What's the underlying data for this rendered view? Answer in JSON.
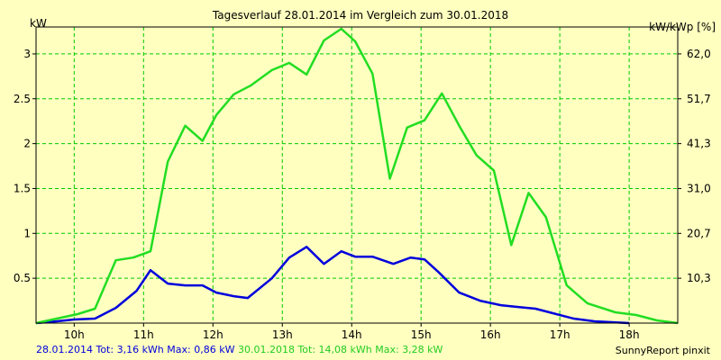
{
  "chart_data": {
    "type": "line",
    "title": "Tagesverlauf 28.01.2014 im Vergleich zum 30.01.2018",
    "ylabel": "kW",
    "ylabel_right": "kW/kWp [%]",
    "xlim": [
      9.45,
      18.7
    ],
    "ylim": [
      0,
      3.3
    ],
    "x_ticks": [
      10,
      11,
      12,
      13,
      14,
      15,
      16,
      17,
      18
    ],
    "x_tick_labels": [
      "10h",
      "11h",
      "12h",
      "13h",
      "14h",
      "15h",
      "16h",
      "17h",
      "18h"
    ],
    "y_ticks": [
      0.5,
      1,
      1.5,
      2,
      2.5,
      3
    ],
    "y_tick_labels": [
      "0.5",
      "1",
      "1.5",
      "2",
      "2.5",
      "3"
    ],
    "y2_ticks": [
      0.5,
      1,
      1.5,
      2,
      2.5,
      3
    ],
    "y2_tick_labels": [
      "10,3",
      "20,7",
      "31,0",
      "41,3",
      "51,7",
      "62,0"
    ],
    "grid": true,
    "colors": {
      "background": "#ffffc0",
      "grid": "#00cc00",
      "axis": "#000000",
      "series_2014": "#0000dd",
      "series_2018": "#22dd22"
    },
    "series": [
      {
        "name": "28.01.2014",
        "color": "#0000dd",
        "x": [
          9.45,
          9.75,
          10.0,
          10.3,
          10.6,
          10.9,
          11.1,
          11.35,
          11.6,
          11.85,
          12.05,
          12.3,
          12.5,
          12.85,
          13.1,
          13.35,
          13.6,
          13.85,
          14.05,
          14.3,
          14.6,
          14.85,
          15.05,
          15.25,
          15.55,
          15.85,
          16.15,
          16.4,
          16.65,
          16.9,
          17.2,
          17.5,
          18.0
        ],
        "y": [
          0.0,
          0.02,
          0.04,
          0.05,
          0.17,
          0.36,
          0.59,
          0.44,
          0.42,
          0.42,
          0.34,
          0.3,
          0.28,
          0.5,
          0.73,
          0.85,
          0.66,
          0.8,
          0.74,
          0.74,
          0.66,
          0.73,
          0.71,
          0.57,
          0.34,
          0.25,
          0.2,
          0.18,
          0.16,
          0.11,
          0.05,
          0.02,
          0.0
        ]
      },
      {
        "name": "30.01.2018",
        "color": "#22dd22",
        "x": [
          9.45,
          9.75,
          10.05,
          10.3,
          10.6,
          10.85,
          11.1,
          11.35,
          11.6,
          11.85,
          12.05,
          12.3,
          12.55,
          12.85,
          13.1,
          13.35,
          13.6,
          13.85,
          14.05,
          14.3,
          14.55,
          14.8,
          15.05,
          15.3,
          15.55,
          15.8,
          16.05,
          16.3,
          16.55,
          16.8,
          17.1,
          17.4,
          17.8,
          18.1,
          18.4,
          18.7
        ],
        "y": [
          0.0,
          0.05,
          0.1,
          0.16,
          0.7,
          0.73,
          0.8,
          1.8,
          2.2,
          2.03,
          2.32,
          2.55,
          2.65,
          2.82,
          2.9,
          2.77,
          3.15,
          3.28,
          3.14,
          2.78,
          1.61,
          2.18,
          2.26,
          2.56,
          2.2,
          1.87,
          1.7,
          0.87,
          1.45,
          1.18,
          0.42,
          0.22,
          0.12,
          0.09,
          0.03,
          0.0
        ]
      }
    ]
  },
  "footer": {
    "s1_label": "28.01.2014 Tot: 3,16 kWh Max: 0,86 kW",
    "s2_label": "30.01.2018 Tot: 14,08 kWh Max: 3,28 kW"
  },
  "credit": "SunnyReport pinxit"
}
